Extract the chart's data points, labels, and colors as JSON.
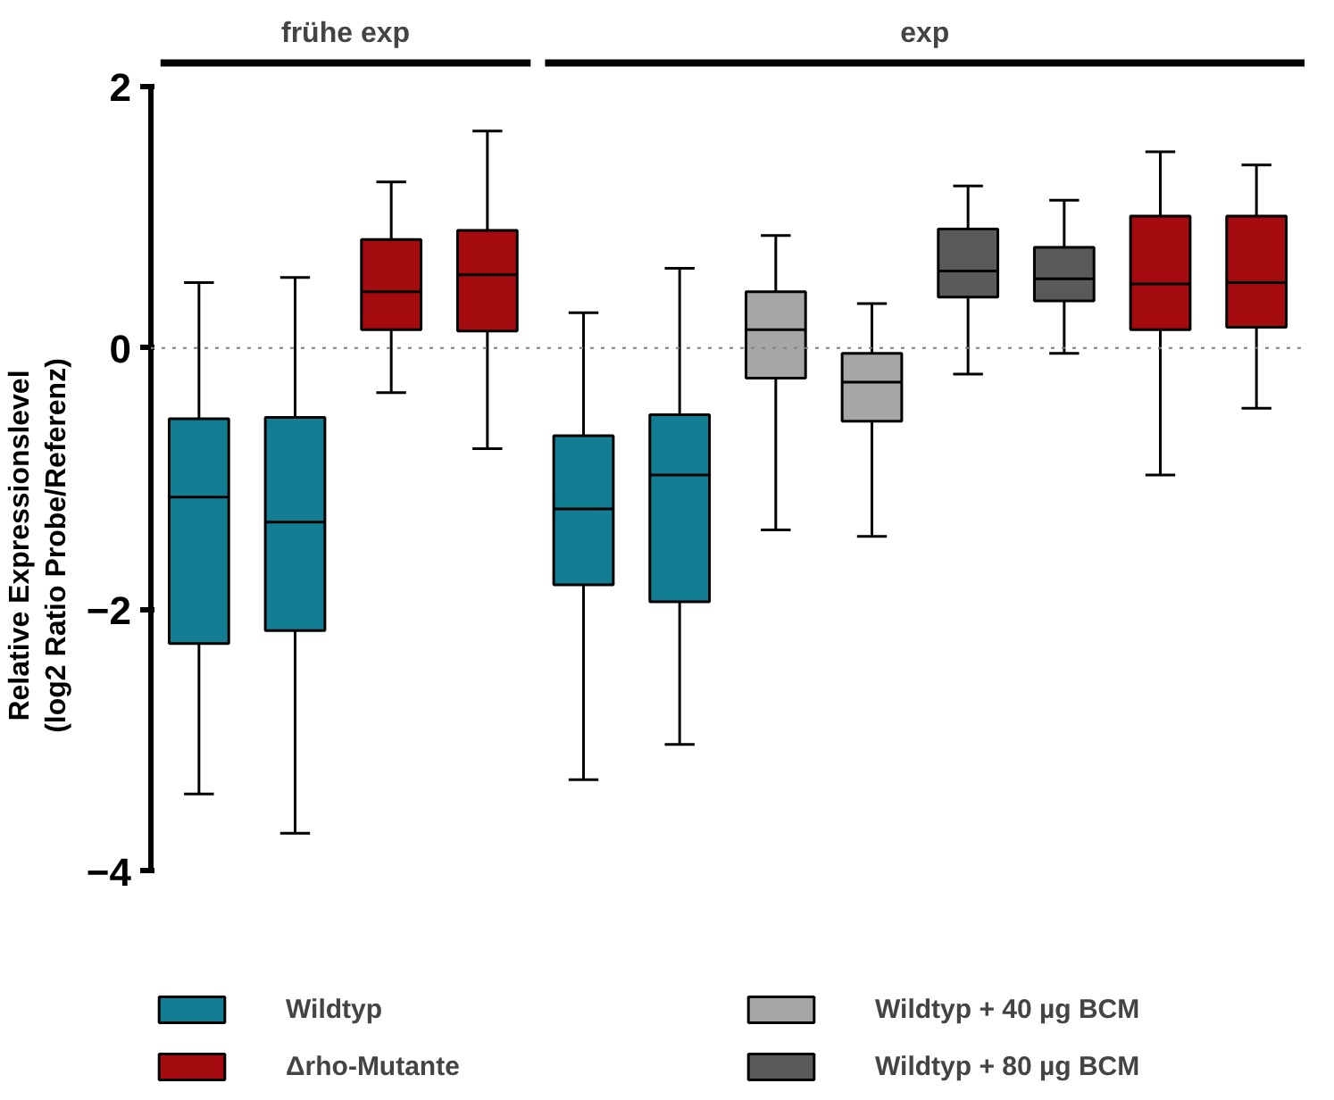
{
  "chart_data": {
    "type": "box",
    "ylabel": "Relative Expressionslevel\n(log2 Ratio Probe/Referenz)",
    "categories": [
      null,
      null,
      null,
      null,
      null,
      null,
      null,
      null,
      null,
      null,
      null,
      null
    ],
    "ylim": [
      -4,
      2
    ],
    "yticks": [
      -4,
      -2,
      0,
      2
    ],
    "grid": false,
    "legend": "bottom",
    "annotations": [
      "frühe exp",
      "exp"
    ],
    "ref_lines": [
      {
        "axis": "y",
        "value": 0,
        "line_style": "dotted",
        "color": "#808080"
      }
    ],
    "series": [
      {
        "name": "Wildtyp",
        "color": "#137d93",
        "boxes": [
          {
            "low": -3.41,
            "q1": -2.26,
            "median": -1.14,
            "q3": -0.54,
            "high": 0.5
          },
          {
            "low": -3.71,
            "q1": -2.16,
            "median": -1.33,
            "q3": -0.53,
            "high": 0.54
          },
          null,
          null,
          {
            "low": -3.3,
            "q1": -1.81,
            "median": -1.23,
            "q3": -0.67,
            "high": 0.27
          },
          {
            "low": -3.03,
            "q1": -1.94,
            "median": -0.97,
            "q3": -0.51,
            "high": 0.61
          },
          null,
          null,
          null,
          null,
          null,
          null
        ]
      },
      {
        "name": "Δrho-Mutante",
        "color": "#a30b0f",
        "boxes": [
          null,
          null,
          {
            "low": -0.34,
            "q1": 0.14,
            "median": 0.43,
            "q3": 0.83,
            "high": 1.27
          },
          {
            "low": -0.77,
            "q1": 0.13,
            "median": 0.56,
            "q3": 0.9,
            "high": 1.66
          },
          null,
          null,
          null,
          null,
          null,
          null,
          {
            "low": -0.97,
            "q1": 0.14,
            "median": 0.49,
            "q3": 1.01,
            "high": 1.5
          },
          {
            "low": -0.46,
            "q1": 0.16,
            "median": 0.5,
            "q3": 1.01,
            "high": 1.4
          }
        ]
      },
      {
        "name": "Wildtyp + 40 µg BCM",
        "color": "#a6a6a6",
        "boxes": [
          null,
          null,
          null,
          null,
          null,
          null,
          {
            "low": -1.39,
            "q1": -0.23,
            "median": 0.14,
            "q3": 0.43,
            "high": 0.86
          },
          {
            "low": -1.44,
            "q1": -0.56,
            "median": -0.26,
            "q3": -0.04,
            "high": 0.34
          },
          null,
          null,
          null,
          null
        ]
      },
      {
        "name": "Wildtyp + 80 µg BCM",
        "color": "#5a5a5a",
        "boxes": [
          null,
          null,
          null,
          null,
          null,
          null,
          null,
          null,
          {
            "low": -0.2,
            "q1": 0.39,
            "median": 0.59,
            "q3": 0.91,
            "high": 1.24
          },
          {
            "low": -0.04,
            "q1": 0.36,
            "median": 0.53,
            "q3": 0.77,
            "high": 1.13
          },
          null,
          null
        ]
      }
    ]
  }
}
